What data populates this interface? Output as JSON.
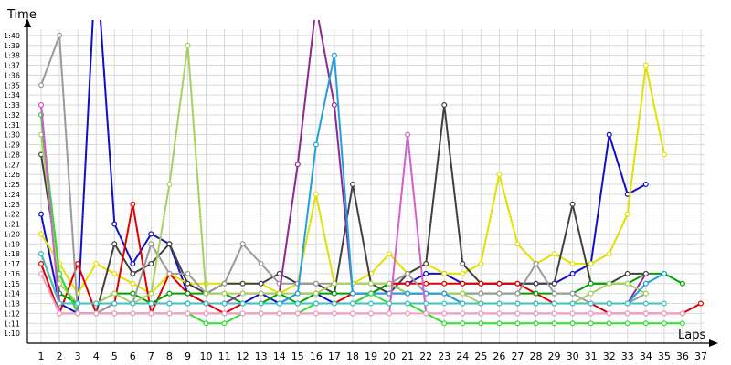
{
  "chart_data": {
    "type": "line",
    "xlabel": "Laps",
    "ylabel": "Time",
    "x": [
      1,
      2,
      3,
      4,
      5,
      6,
      7,
      8,
      9,
      10,
      11,
      12,
      13,
      14,
      15,
      16,
      17,
      18,
      19,
      20,
      21,
      22,
      23,
      24,
      25,
      26,
      27,
      28,
      29,
      30,
      31,
      32,
      33,
      34,
      35,
      36,
      37
    ],
    "y_ticks": [
      "1:10",
      "1:11",
      "1:12",
      "1:13",
      "1:14",
      "1:15",
      "1:16",
      "1:17",
      "1:18",
      "1:19",
      "1:20",
      "1:21",
      "1:22",
      "1:23",
      "1:24",
      "1:25",
      "1:26",
      "1:27",
      "1:28",
      "1:29",
      "1:30",
      "1:31",
      "1:32",
      "1:33",
      "1:34",
      "1:35",
      "1:36",
      "1:37",
      "1:38",
      "1:39",
      "1:40"
    ],
    "ylim_seconds": [
      69,
      101
    ],
    "grid": true,
    "legend": "none",
    "series": [
      {
        "color": "#1010c8",
        "values": [
          82,
          73,
          72,
          108,
          81,
          77,
          80,
          79,
          74,
          73,
          73,
          73,
          74,
          73,
          74,
          74,
          73,
          73,
          74,
          75,
          75,
          76,
          76,
          75,
          75,
          75,
          75,
          75,
          75,
          76,
          77,
          90,
          84,
          85,
          null,
          null,
          null
        ]
      },
      {
        "color": "#e1e100",
        "values": [
          80,
          77,
          74,
          77,
          76,
          75,
          74,
          76,
          75,
          75,
          75,
          75,
          75,
          74,
          75,
          84,
          75,
          75,
          76,
          78,
          76,
          77,
          76,
          76,
          77,
          86,
          79,
          77,
          78,
          77,
          77,
          78,
          82,
          97,
          88,
          null,
          null
        ]
      },
      {
        "color": "#404040",
        "values": [
          88,
          76,
          72,
          72,
          79,
          76,
          77,
          79,
          75,
          74,
          75,
          75,
          75,
          76,
          75,
          75,
          74,
          85,
          75,
          74,
          76,
          77,
          93,
          77,
          75,
          75,
          75,
          75,
          75,
          83,
          75,
          75,
          76,
          76,
          null,
          null,
          null
        ]
      },
      {
        "color": "#e00000",
        "values": [
          77,
          72,
          77,
          72,
          73,
          83,
          72,
          76,
          74,
          73,
          72,
          73,
          73,
          73,
          73,
          73,
          73,
          74,
          74,
          75,
          75,
          75,
          75,
          75,
          75,
          75,
          75,
          74,
          73,
          73,
          73,
          72,
          72,
          72,
          72,
          72,
          73
        ]
      },
      {
        "color": "#00a000",
        "values": [
          92,
          74,
          73,
          73,
          74,
          74,
          73,
          74,
          74,
          74,
          74,
          73,
          73,
          74,
          73,
          74,
          74,
          74,
          74,
          75,
          74,
          74,
          74,
          74,
          74,
          74,
          74,
          74,
          74,
          74,
          75,
          75,
          75,
          76,
          76,
          75,
          null
        ]
      },
      {
        "color": "#9a9a9a",
        "values": [
          95,
          100,
          72,
          72,
          73,
          73,
          79,
          76,
          76,
          74,
          75,
          79,
          77,
          75,
          75,
          75,
          75,
          75,
          75,
          75,
          76,
          74,
          74,
          74,
          74,
          74,
          74,
          77,
          74,
          74,
          73,
          73,
          73,
          74,
          null,
          null,
          null
        ]
      },
      {
        "color": "#902890",
        "values": [
          93,
          73,
          73,
          73,
          73,
          73,
          73,
          73,
          73,
          73,
          73,
          74,
          74,
          74,
          87,
          103,
          93,
          74,
          74,
          74,
          74,
          74,
          74,
          73,
          73,
          73,
          73,
          73,
          73,
          73,
          73,
          73,
          73,
          76,
          null,
          null,
          null
        ]
      },
      {
        "color": "#a8d060",
        "values": [
          90,
          75,
          73,
          73,
          74,
          73,
          74,
          85,
          99,
          74,
          74,
          74,
          74,
          74,
          74,
          74,
          75,
          75,
          75,
          75,
          74,
          74,
          74,
          74,
          73,
          73,
          73,
          73,
          73,
          73,
          74,
          75,
          75,
          74,
          null,
          null,
          null
        ]
      },
      {
        "color": "#20a0e0",
        "values": [
          78,
          73,
          73,
          73,
          73,
          73,
          73,
          73,
          73,
          73,
          73,
          73,
          73,
          73,
          74,
          89,
          98,
          74,
          74,
          74,
          74,
          74,
          74,
          73,
          73,
          73,
          73,
          73,
          73,
          73,
          73,
          73,
          73,
          75,
          76,
          null,
          null
        ]
      },
      {
        "color": "#30e030",
        "values": [
          92,
          76,
          72,
          72,
          72,
          72,
          72,
          72,
          72,
          71,
          71,
          72,
          72,
          72,
          72,
          73,
          73,
          73,
          74,
          73,
          73,
          72,
          71,
          71,
          71,
          71,
          71,
          71,
          71,
          71,
          71,
          71,
          71,
          71,
          71,
          71,
          null
        ]
      },
      {
        "color": "#d060d0",
        "values": [
          93,
          72,
          72,
          72,
          72,
          72,
          72,
          72,
          72,
          72,
          72,
          72,
          72,
          72,
          72,
          72,
          72,
          72,
          72,
          72,
          90,
          72,
          72,
          72,
          72,
          72,
          72,
          72,
          72,
          72,
          72,
          72,
          72,
          72,
          72,
          null,
          null
        ]
      },
      {
        "color": "#f0a0c0",
        "values": [
          76,
          72,
          72,
          72,
          72,
          72,
          72,
          72,
          72,
          72,
          72,
          72,
          72,
          72,
          72,
          72,
          72,
          72,
          72,
          72,
          72,
          72,
          72,
          72,
          72,
          72,
          72,
          72,
          72,
          72,
          72,
          72,
          72,
          72,
          72,
          72,
          null
        ]
      },
      {
        "color": "#40c0c0",
        "values": [
          78,
          73,
          73,
          73,
          73,
          73,
          73,
          73,
          73,
          73,
          73,
          73,
          73,
          73,
          73,
          73,
          73,
          73,
          73,
          73,
          73,
          73,
          73,
          73,
          73,
          73,
          73,
          73,
          73,
          73,
          73,
          73,
          73,
          73,
          73,
          null,
          null
        ]
      }
    ]
  }
}
